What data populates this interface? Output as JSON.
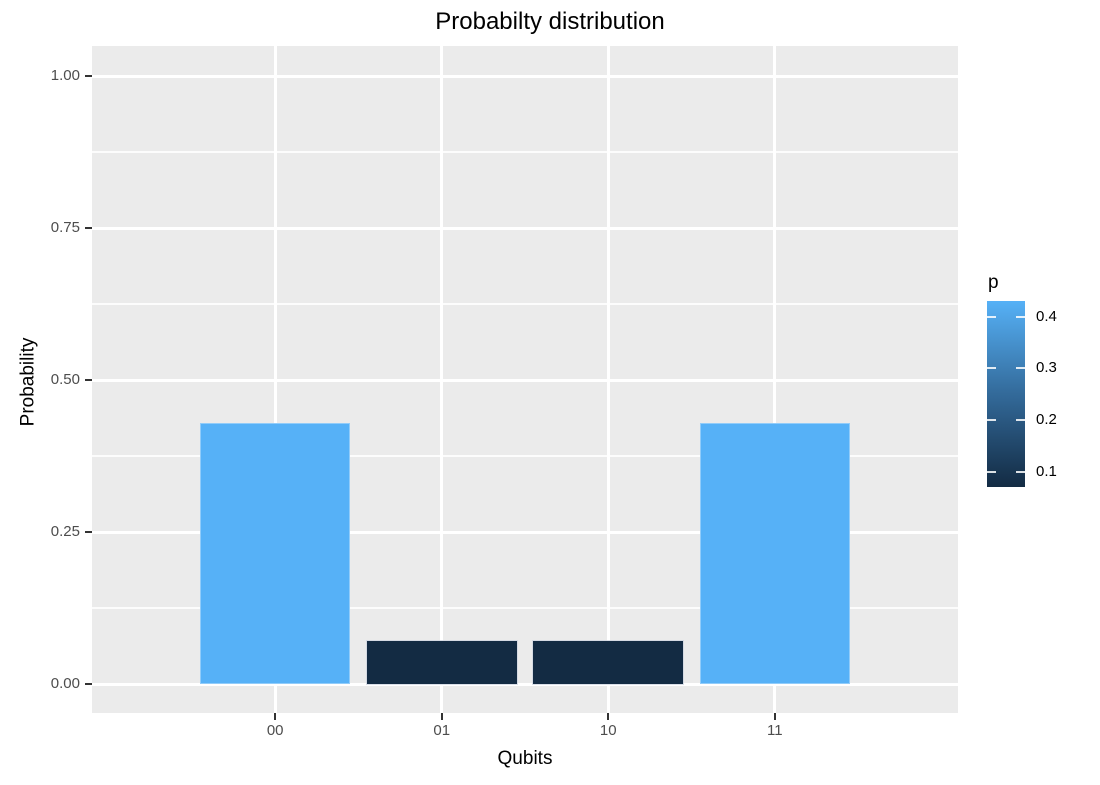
{
  "chart_data": {
    "type": "bar",
    "title": "Probabilty distribution",
    "xlabel": "Qubits",
    "ylabel": "Probability",
    "categories": [
      "00",
      "01",
      "10",
      "11"
    ],
    "values": [
      0.43,
      0.07,
      0.07,
      0.43
    ],
    "ylim": [
      0,
      1.05
    ],
    "yticks": [
      0,
      0.25,
      0.5,
      0.75,
      1
    ],
    "ytick_labels": [
      "0.00",
      "0.25",
      "0.50",
      "0.75",
      "1.00"
    ],
    "grid": "white major+minor horizontal lines and major vertical lines on gray panel",
    "legend_position": "right",
    "legend": {
      "title": "p",
      "type": "continuous_gradient",
      "ticks": [
        0.4,
        0.3,
        0.2,
        0.1
      ],
      "tick_labels": [
        "0.4",
        "0.3",
        "0.2",
        "0.1"
      ],
      "range": [
        0.07,
        0.43
      ]
    },
    "colors": {
      "fill_high": "#56B1F7",
      "fill_mid": "#336A9A",
      "fill_low": "#132B43",
      "panel_bg": "#EBEBEB",
      "grid": "#FFFFFF",
      "tick_text": "#4D4D4D",
      "text": "#000000",
      "plot_bg": "#FFFFFF"
    }
  }
}
